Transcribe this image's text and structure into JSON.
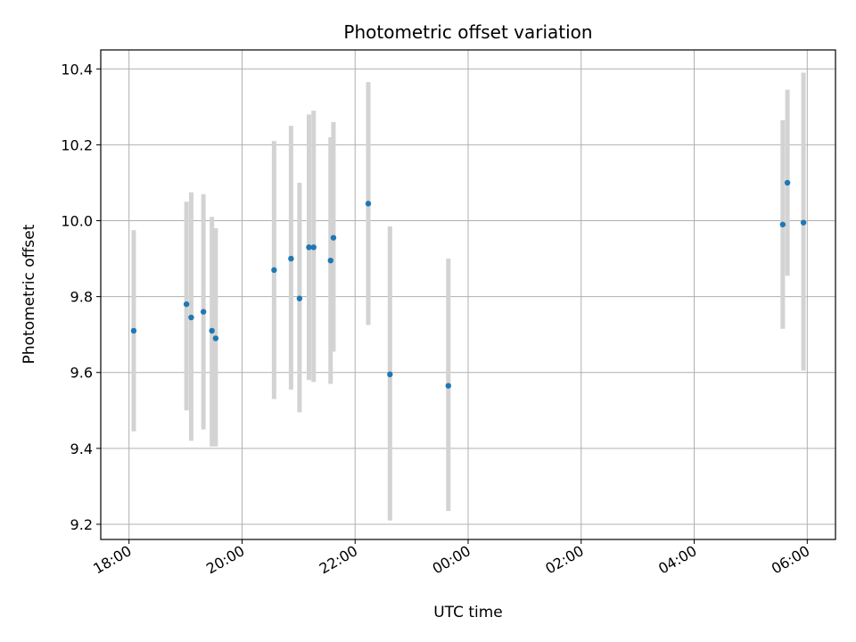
{
  "chart_data": {
    "type": "scatter",
    "title": "Photometric offset variation",
    "xlabel": "UTC time",
    "ylabel": "Photometric offset",
    "x_axis": {
      "type": "time",
      "start": "17:30",
      "end": "30:30",
      "ticks": [
        {
          "time": "18:00",
          "label": "18:00"
        },
        {
          "time": "20:00",
          "label": "20:00"
        },
        {
          "time": "22:00",
          "label": "22:00"
        },
        {
          "time": "24:00",
          "label": "00:00"
        },
        {
          "time": "26:00",
          "label": "02:00"
        },
        {
          "time": "28:00",
          "label": "04:00"
        },
        {
          "time": "30:00",
          "label": "06:00"
        }
      ]
    },
    "y_axis": {
      "ylim": [
        9.16,
        10.45
      ],
      "ticks": [
        9.2,
        9.4,
        9.6,
        9.8,
        10.0,
        10.2,
        10.4
      ],
      "tick_labels": [
        "9.2",
        "9.4",
        "9.6",
        "9.8",
        "10.0",
        "10.2",
        "10.4"
      ]
    },
    "grid": true,
    "series": [
      {
        "marker_color": "#1f77b4",
        "errorbar_color": "#d3d3d3",
        "points": [
          {
            "x": "18:05",
            "y": 9.71,
            "ylow": 9.445,
            "yhigh": 9.975
          },
          {
            "x": "19:01",
            "y": 9.78,
            "ylow": 9.5,
            "yhigh": 10.05
          },
          {
            "x": "19:06",
            "y": 9.745,
            "ylow": 9.42,
            "yhigh": 10.075
          },
          {
            "x": "19:19",
            "y": 9.76,
            "ylow": 9.45,
            "yhigh": 10.07
          },
          {
            "x": "19:28",
            "y": 9.71,
            "ylow": 9.405,
            "yhigh": 10.01
          },
          {
            "x": "19:32",
            "y": 9.69,
            "ylow": 9.405,
            "yhigh": 9.98
          },
          {
            "x": "20:34",
            "y": 9.87,
            "ylow": 9.53,
            "yhigh": 10.21
          },
          {
            "x": "20:52",
            "y": 9.9,
            "ylow": 9.555,
            "yhigh": 10.25
          },
          {
            "x": "21:01",
            "y": 9.795,
            "ylow": 9.495,
            "yhigh": 10.1
          },
          {
            "x": "21:11",
            "y": 9.93,
            "ylow": 9.58,
            "yhigh": 10.28
          },
          {
            "x": "21:16",
            "y": 9.93,
            "ylow": 9.575,
            "yhigh": 10.29
          },
          {
            "x": "21:34",
            "y": 9.895,
            "ylow": 9.57,
            "yhigh": 10.22
          },
          {
            "x": "21:37",
            "y": 9.955,
            "ylow": 9.655,
            "yhigh": 10.26
          },
          {
            "x": "22:14",
            "y": 10.045,
            "ylow": 9.725,
            "yhigh": 10.365
          },
          {
            "x": "22:37",
            "y": 9.595,
            "ylow": 9.21,
            "yhigh": 9.985
          },
          {
            "x": "23:39",
            "y": 9.565,
            "ylow": 9.235,
            "yhigh": 9.9
          },
          {
            "x": "29:34",
            "y": 9.99,
            "ylow": 9.715,
            "yhigh": 10.265
          },
          {
            "x": "29:39",
            "y": 10.1,
            "ylow": 9.855,
            "yhigh": 10.345
          },
          {
            "x": "29:56",
            "y": 9.995,
            "ylow": 9.605,
            "yhigh": 10.39
          }
        ]
      }
    ]
  }
}
